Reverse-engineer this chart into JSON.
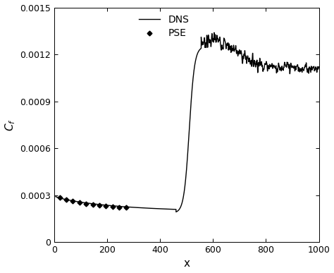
{
  "title": "",
  "xlabel": "x",
  "ylabel": "$C_f$",
  "xlim": [
    0,
    1000
  ],
  "ylim": [
    0,
    0.0015
  ],
  "xticks": [
    0,
    200,
    400,
    600,
    800,
    1000
  ],
  "yticks": [
    0,
    0.0003,
    0.0006,
    0.0009,
    0.0012,
    0.0015
  ],
  "ytick_labels": [
    "0",
    "0.0003",
    "0.0006",
    "0.0009",
    "0.0012",
    "0.0015"
  ],
  "dns_color": "#000000",
  "pse_color": "#000000",
  "legend_labels": [
    "DNS",
    "PSE"
  ],
  "background_color": "#ffffff",
  "pse_x": [
    20,
    45,
    70,
    95,
    120,
    145,
    170,
    195,
    220,
    245,
    270
  ],
  "pse_y": [
    0.000285,
    0.000272,
    0.000261,
    0.000252,
    0.000245,
    0.000239,
    0.000234,
    0.000229,
    0.000226,
    0.000222,
    0.00022
  ]
}
